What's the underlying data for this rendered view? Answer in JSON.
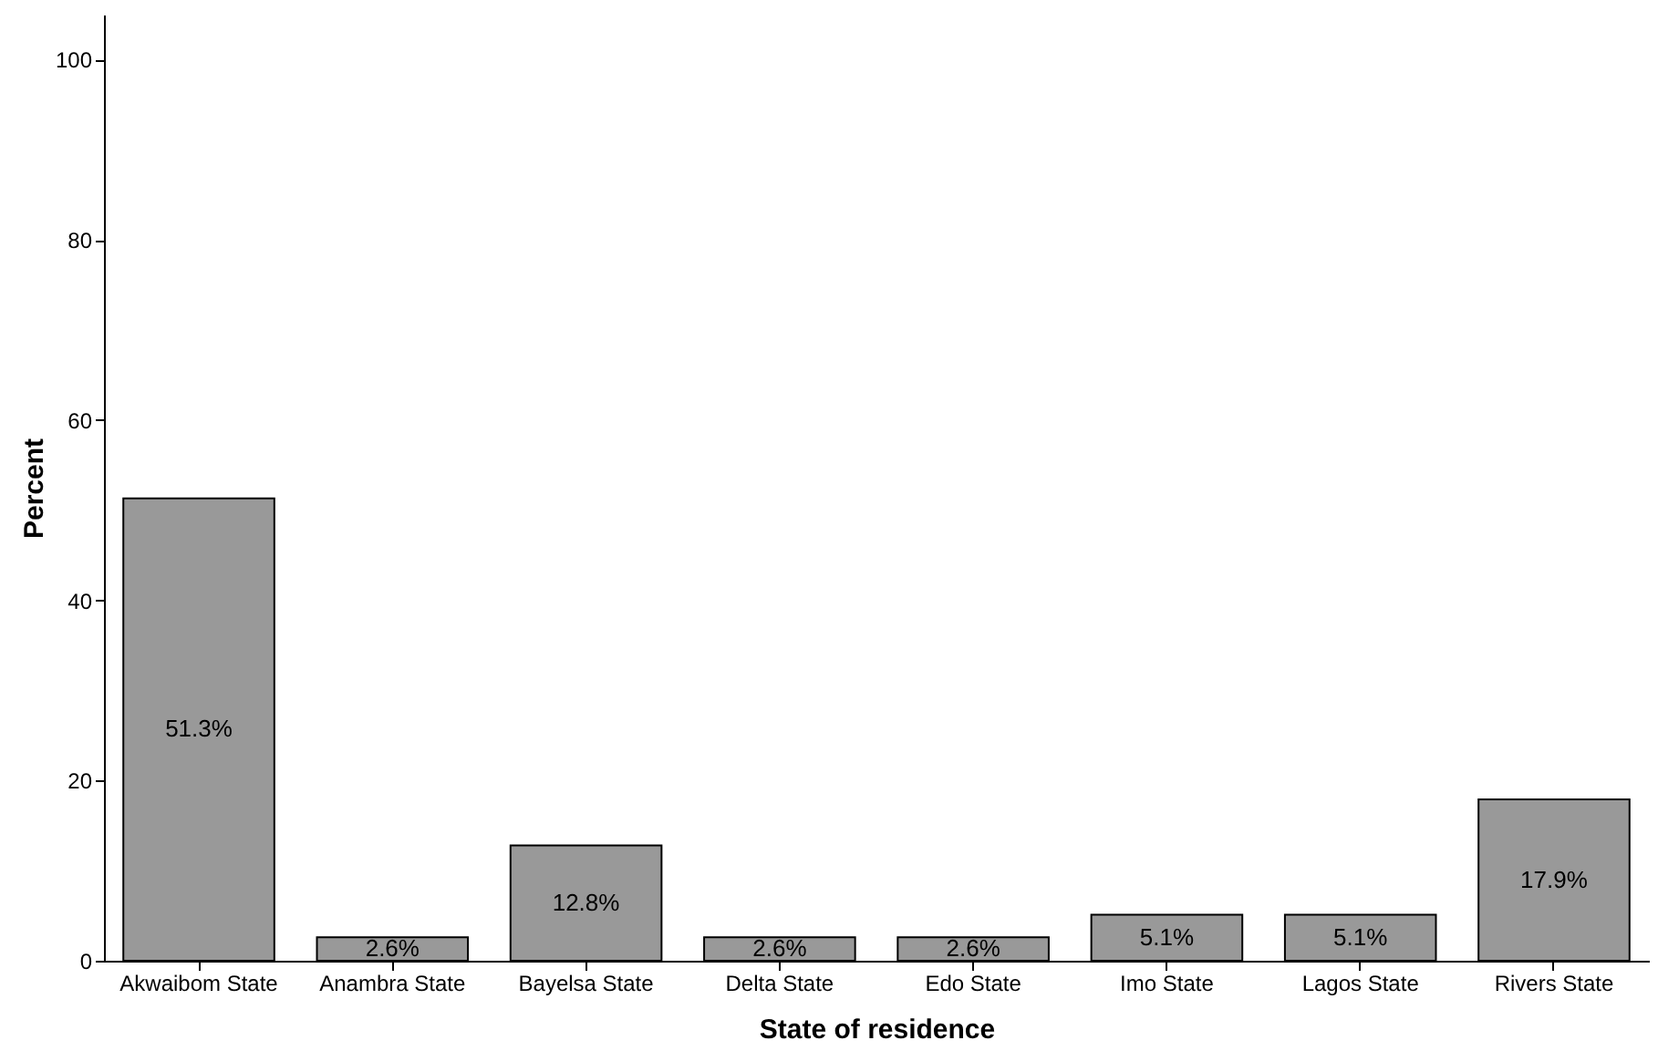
{
  "chart_data": {
    "type": "bar",
    "xlabel": "State of residence",
    "ylabel": "Percent",
    "categories": [
      "Akwaibom State",
      "Anambra State",
      "Bayelsa State",
      "Delta State",
      "Edo State",
      "Imo State",
      "Lagos State",
      "Rivers State"
    ],
    "values": [
      51.3,
      2.6,
      12.8,
      2.6,
      2.6,
      5.1,
      5.1,
      17.9
    ],
    "value_labels": [
      "51.3%",
      "2.6%",
      "12.8%",
      "2.6%",
      "2.6%",
      "5.1%",
      "5.1%",
      "17.9%"
    ],
    "color": "#999999",
    "ylim": [
      0,
      105
    ],
    "yticks": [
      0,
      20,
      40,
      60,
      80,
      100
    ],
    "grid": false
  }
}
